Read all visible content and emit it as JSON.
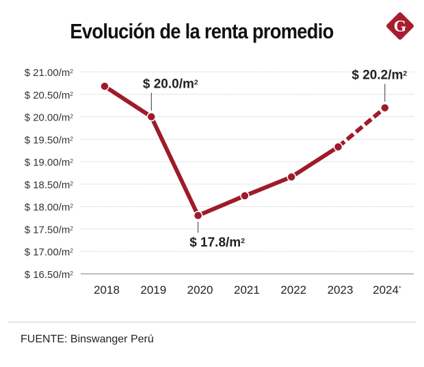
{
  "title": "Evolución de la renta promedio",
  "logo": {
    "letter": "G",
    "color": "#a81d2e"
  },
  "source": "FUENTE: Binswanger Perú",
  "chart_data": {
    "type": "line",
    "title": "Evolución de la renta promedio",
    "xlabel": "",
    "ylabel": "",
    "categories": [
      "2018",
      "2019",
      "2020",
      "2021",
      "2022",
      "2023",
      "2024*"
    ],
    "values": [
      20.68,
      20.0,
      17.8,
      18.24,
      18.66,
      19.33,
      20.2
    ],
    "dashed_from_category": "2023",
    "ylim": [
      16.5,
      21.0
    ],
    "yticks": [
      21.0,
      20.5,
      20.0,
      19.5,
      19.0,
      18.5,
      18.0,
      17.5,
      17.0,
      16.5
    ],
    "ytick_labels": [
      "$ 21.00/m²",
      "$ 20.50/m²",
      "$ 20.00/m²",
      "$ 19.50/m²",
      "$ 19.00/m²",
      "$ 18.50/m²",
      "$ 18.00/m²",
      "$ 17.50/m²",
      "$ 17.00/m²",
      "$ 16.50/m²"
    ],
    "annotations": [
      {
        "category": "2019",
        "text": "$ 20.0/m²",
        "position": "above"
      },
      {
        "category": "2020",
        "text": "$ 17.8/m²",
        "position": "below"
      },
      {
        "category": "2024*",
        "text": "$ 20.2/m²",
        "position": "above"
      }
    ],
    "grid": true,
    "line_color": "#9e1b2a"
  }
}
